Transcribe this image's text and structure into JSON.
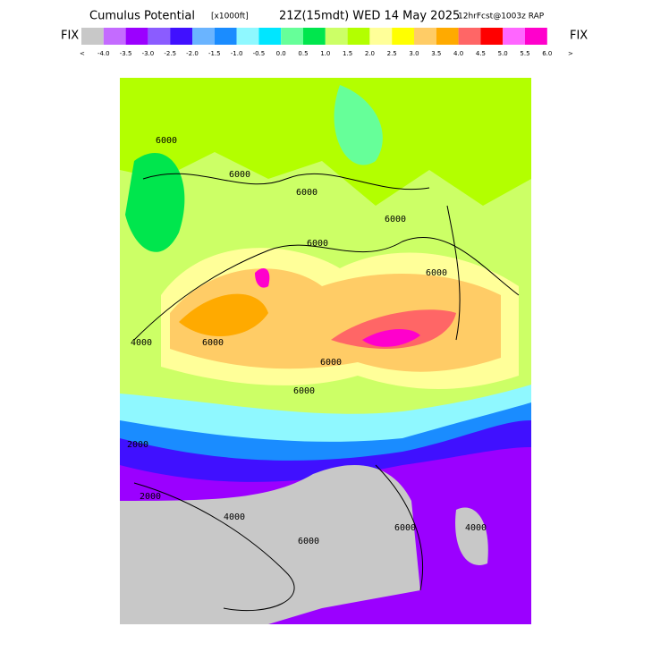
{
  "header": {
    "title": "Cumulus Potential",
    "units": "[x1000ft]",
    "time": "21Z(15mdt) WED 14 May 2025",
    "forecast": "12hrFcst@1003z RAP"
  },
  "colorbar": {
    "left_label": "FIX",
    "right_label": "FIX",
    "left_arrow": "<",
    "right_arrow": ">",
    "ticks": [
      "-4.0",
      "-3.5",
      "-3.0",
      "-2.5",
      "-2.0",
      "-1.5",
      "-1.0",
      "-0.5",
      "0.0",
      "0.5",
      "1.0",
      "1.5",
      "2.0",
      "2.5",
      "3.0",
      "3.5",
      "4.0",
      "4.5",
      "5.0",
      "5.5",
      "6.0"
    ],
    "colors": [
      "#c8c8c8",
      "#c46bff",
      "#9b00ff",
      "#8b5cff",
      "#4010ff",
      "#6ab4ff",
      "#1a8cff",
      "#8ff8ff",
      "#00e6ff",
      "#66ff99",
      "#00e64d",
      "#ccff66",
      "#b3ff00",
      "#ffff99",
      "#ffff00",
      "#ffcc66",
      "#ffaa00",
      "#ff6666",
      "#ff0000",
      "#ff66ff",
      "#ff00cc"
    ]
  },
  "map": {
    "contour_labels": [
      "6000",
      "6000",
      "6000",
      "6000",
      "6000",
      "6000",
      "4000",
      "6000",
      "6000",
      "6000",
      "2000",
      "4000",
      "6000",
      "2000",
      "6000",
      "4000"
    ]
  }
}
